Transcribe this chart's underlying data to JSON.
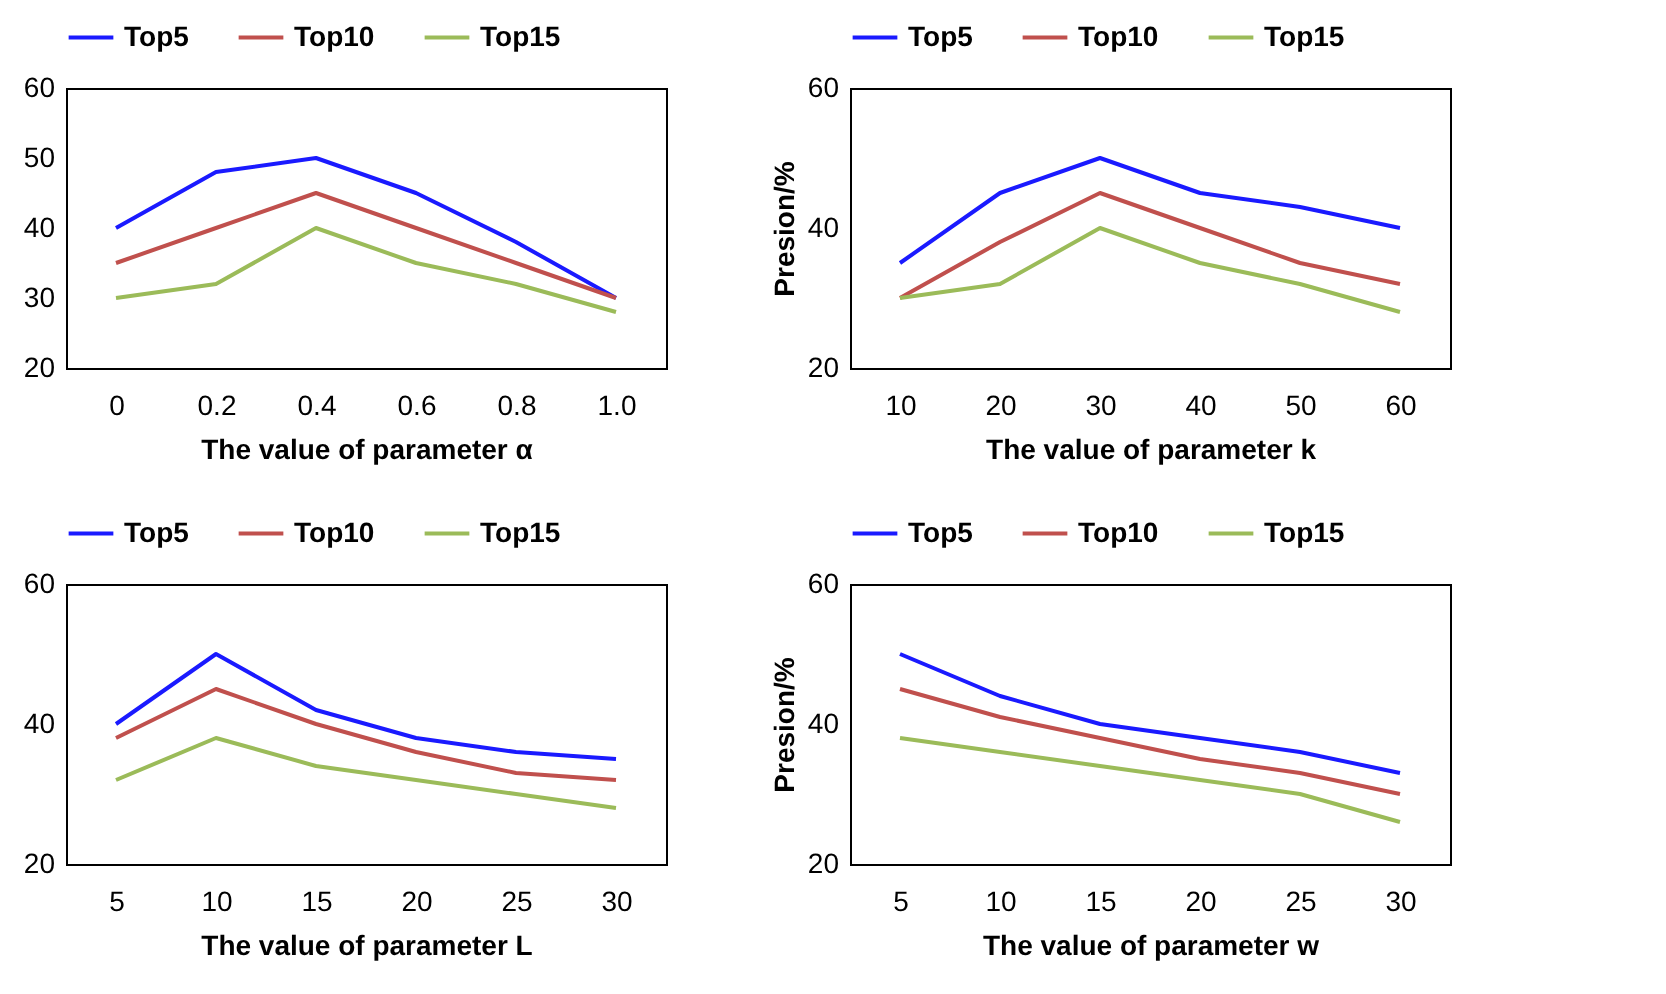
{
  "chart_data": [
    {
      "type": "line",
      "xlabel": "The value of parameter  α",
      "categories": [
        "0",
        "0.2",
        "0.4",
        "0.6",
        "0.8",
        "1.0"
      ],
      "ylim": [
        20,
        60
      ],
      "yticks": [
        20,
        30,
        40,
        50,
        60
      ],
      "legend": "top",
      "series": [
        {
          "name": "Top5",
          "color": "#1a1aff",
          "values": [
            40,
            48,
            50,
            45,
            38,
            30
          ]
        },
        {
          "name": "Top10",
          "color": "#c0504d",
          "values": [
            35,
            40,
            45,
            40,
            35,
            30
          ]
        },
        {
          "name": "Top15",
          "color": "#9bbb59",
          "values": [
            30,
            32,
            40,
            35,
            32,
            28
          ]
        }
      ]
    },
    {
      "type": "line",
      "xlabel": "The value of parameter k",
      "ylabel": "Presion/%",
      "categories": [
        "10",
        "20",
        "30",
        "40",
        "50",
        "60"
      ],
      "ylim": [
        20,
        60
      ],
      "yticks": [
        20,
        40,
        60
      ],
      "legend": "top",
      "series": [
        {
          "name": "Top5",
          "color": "#1a1aff",
          "values": [
            35,
            45,
            50,
            45,
            43,
            40
          ]
        },
        {
          "name": "Top10",
          "color": "#c0504d",
          "values": [
            30,
            38,
            45,
            40,
            35,
            32
          ]
        },
        {
          "name": "Top15",
          "color": "#9bbb59",
          "values": [
            30,
            32,
            40,
            35,
            32,
            28
          ]
        }
      ]
    },
    {
      "type": "line",
      "xlabel": "The value of parameter L",
      "categories": [
        "5",
        "10",
        "15",
        "20",
        "25",
        "30"
      ],
      "ylim": [
        20,
        60
      ],
      "yticks": [
        20,
        40,
        60
      ],
      "legend": "top",
      "series": [
        {
          "name": "Top5",
          "color": "#1a1aff",
          "values": [
            40,
            50,
            42,
            38,
            36,
            35
          ]
        },
        {
          "name": "Top10",
          "color": "#c0504d",
          "values": [
            38,
            45,
            40,
            36,
            33,
            32
          ]
        },
        {
          "name": "Top15",
          "color": "#9bbb59",
          "values": [
            32,
            38,
            34,
            32,
            30,
            28
          ]
        }
      ]
    },
    {
      "type": "line",
      "xlabel": "The value of parameter w",
      "ylabel": "Presion/%",
      "categories": [
        "5",
        "10",
        "15",
        "20",
        "25",
        "30"
      ],
      "ylim": [
        20,
        60
      ],
      "yticks": [
        20,
        40,
        60
      ],
      "legend": "top",
      "series": [
        {
          "name": "Top5",
          "color": "#1a1aff",
          "values": [
            50,
            44,
            40,
            38,
            36,
            33
          ]
        },
        {
          "name": "Top10",
          "color": "#c0504d",
          "values": [
            45,
            41,
            38,
            35,
            33,
            30
          ]
        },
        {
          "name": "Top15",
          "color": "#9bbb59",
          "values": [
            38,
            36,
            34,
            32,
            30,
            26
          ]
        }
      ]
    }
  ]
}
